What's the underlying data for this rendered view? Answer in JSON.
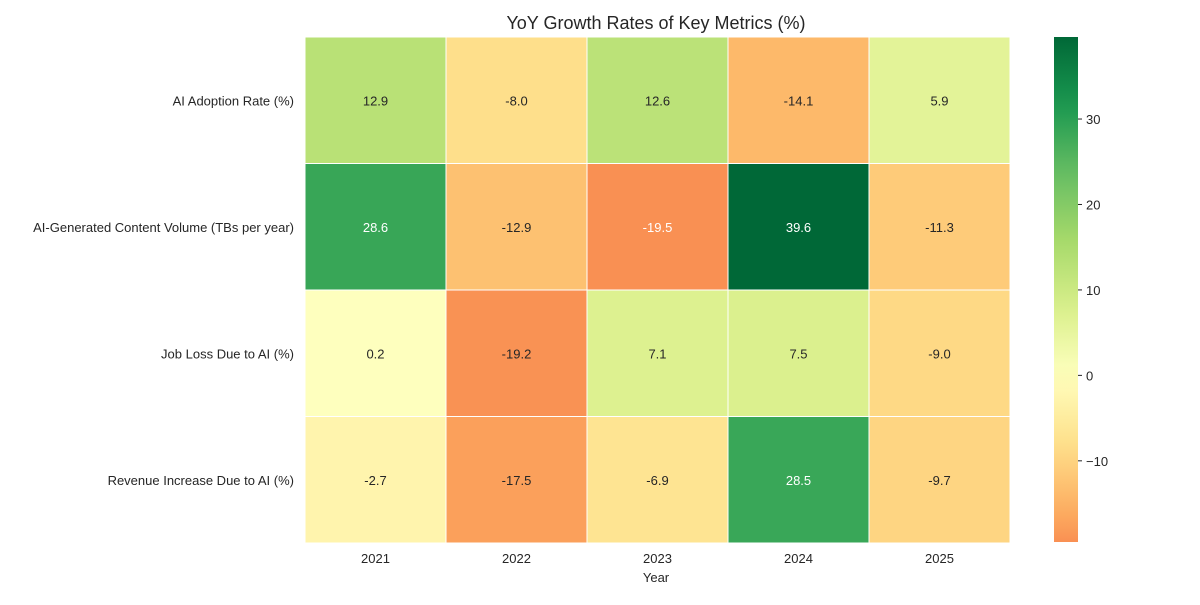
{
  "chart_data": {
    "type": "heatmap",
    "title": "YoY Growth Rates of Key Metrics (%)",
    "xlabel": "Year",
    "ylabel": "",
    "x_categories": [
      "2021",
      "2022",
      "2023",
      "2024",
      "2025"
    ],
    "y_categories": [
      "AI Adoption Rate (%)",
      "AI-Generated Content Volume (TBs per year)",
      "Job Loss Due to AI (%)",
      "Revenue Increase Due to AI (%)"
    ],
    "values": [
      [
        12.9,
        -8.0,
        12.6,
        -14.1,
        5.9
      ],
      [
        28.6,
        -12.9,
        -19.5,
        39.6,
        -11.3
      ],
      [
        0.2,
        -19.2,
        7.1,
        7.5,
        -9.0
      ],
      [
        -2.7,
        -17.5,
        -6.9,
        28.5,
        -9.7
      ]
    ],
    "colormap": "RdYlGn",
    "colorbar": {
      "vmin": -19.5,
      "vmax": 39.6,
      "center": 0,
      "ticks": [
        -10,
        0,
        10,
        20,
        30
      ],
      "tick_labels": [
        "−10",
        "0",
        "10",
        "20",
        "30"
      ]
    },
    "annotation_format": "0.1f",
    "grid": false
  }
}
